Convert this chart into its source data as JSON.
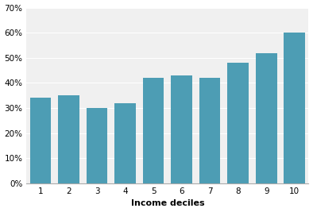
{
  "categories": [
    "1",
    "2",
    "3",
    "4",
    "5",
    "6",
    "7",
    "8",
    "9",
    "10"
  ],
  "values": [
    0.34,
    0.35,
    0.3,
    0.32,
    0.42,
    0.43,
    0.42,
    0.48,
    0.52,
    0.6
  ],
  "bar_color": "#4d9db4",
  "xlabel": "Income deciles",
  "xlabel_fontsize": 8,
  "xlabel_fontweight": "bold",
  "ylim": [
    0,
    0.7
  ],
  "yticks": [
    0.0,
    0.1,
    0.2,
    0.3,
    0.4,
    0.5,
    0.6,
    0.7
  ],
  "background_color": "#ffffff",
  "plot_bg_color": "#f0f0f0",
  "grid_color": "#ffffff",
  "bar_width": 0.75,
  "tick_fontsize": 7.5
}
